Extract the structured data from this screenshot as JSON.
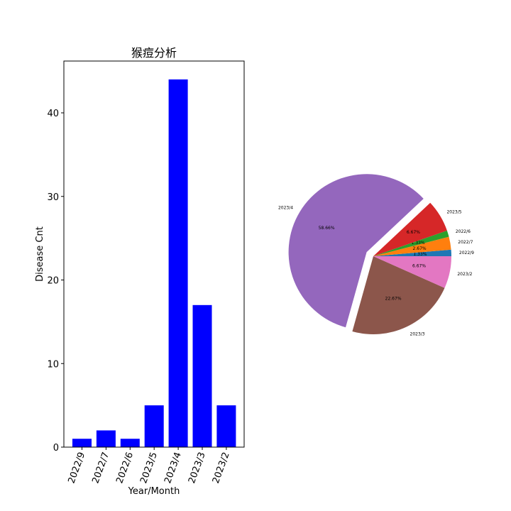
{
  "chart_data": [
    {
      "type": "bar",
      "title": "猴痘分析",
      "xlabel": "Year/Month",
      "ylabel": "Disease Cnt",
      "categories": [
        "2022/9",
        "2022/7",
        "2022/6",
        "2023/5",
        "2023/4",
        "2023/3",
        "2023/2"
      ],
      "values": [
        1,
        2,
        1,
        5,
        44,
        17,
        5
      ],
      "ylim": [
        0,
        46.2
      ],
      "yticks": [
        0,
        10,
        20,
        30,
        40
      ],
      "bar_color": "#0000ff",
      "grid": false
    },
    {
      "type": "pie",
      "labels": [
        "2022/9",
        "2022/7",
        "2022/6",
        "2023/5",
        "2023/4",
        "2023/3",
        "2023/2"
      ],
      "values": [
        1,
        2,
        1,
        5,
        44,
        17,
        5
      ],
      "percent_labels": [
        "1.33%",
        "2.67%",
        "1.33%",
        "6.67%",
        "58.66%",
        "22.67%",
        "6.67%"
      ],
      "colors": [
        "#1f77b4",
        "#ff7f0e",
        "#2ca02c",
        "#d62728",
        "#9467bd",
        "#8c564b",
        "#e377c2"
      ],
      "exploded": "2023/4"
    }
  ]
}
